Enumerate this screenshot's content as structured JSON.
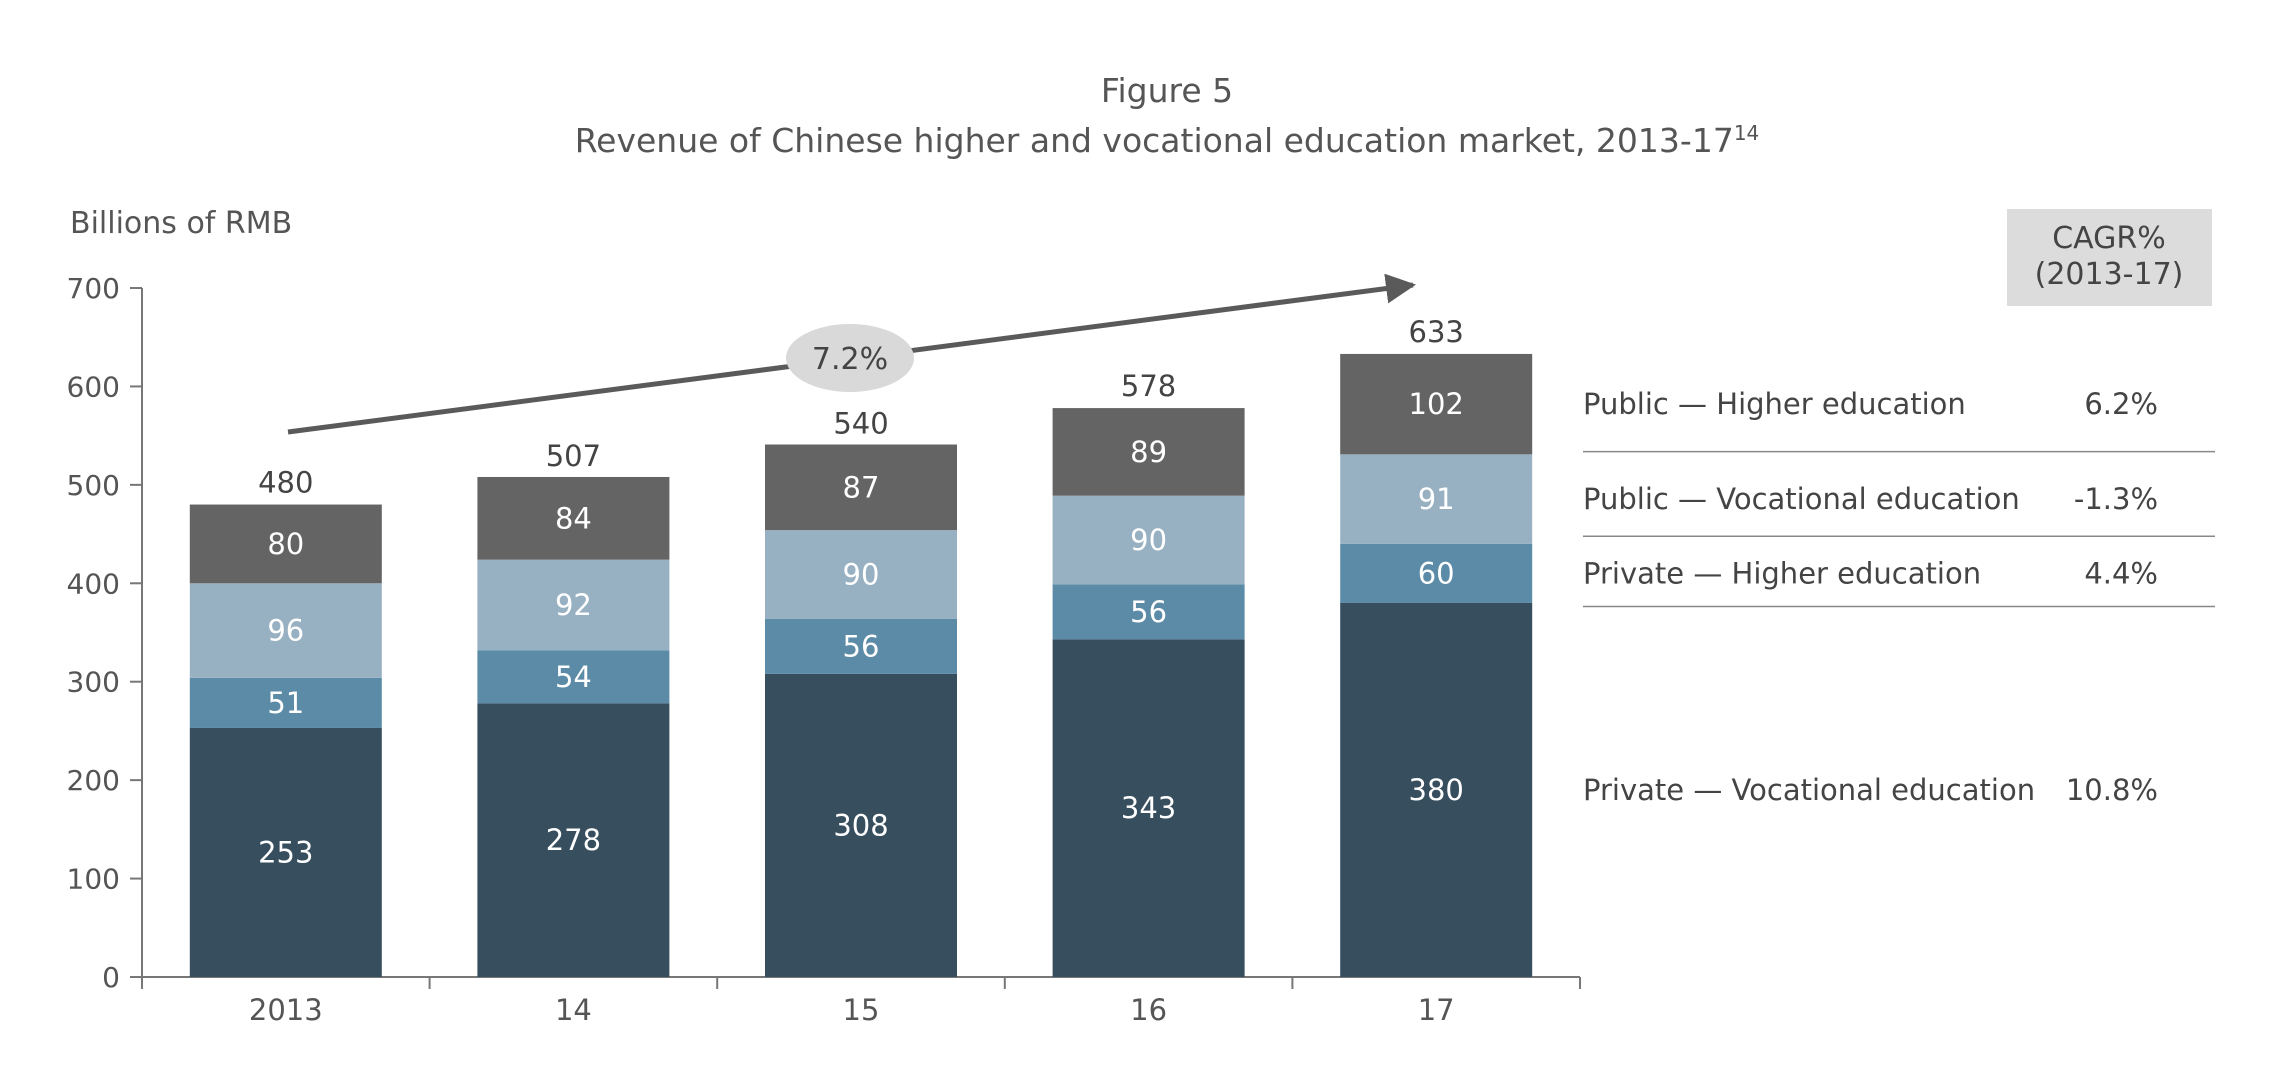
{
  "chart_data": {
    "type": "bar",
    "stacked": true,
    "figure_label": "Figure 5",
    "title": "Revenue of Chinese higher and vocational education market, 2013-17",
    "title_footnote": "14",
    "ylabel": "Billions of RMB",
    "xlabel": "",
    "ylim": [
      0,
      700
    ],
    "yticks": [
      0,
      100,
      200,
      300,
      400,
      500,
      600,
      700
    ],
    "categories": [
      "2013",
      "14",
      "15",
      "16",
      "17"
    ],
    "series": [
      {
        "name": "Private — Vocational education",
        "values": [
          253,
          278,
          308,
          343,
          380
        ],
        "color": "#364e5e",
        "cagr": "10.8%"
      },
      {
        "name": "Private — Higher education",
        "values": [
          51,
          54,
          56,
          56,
          60
        ],
        "color": "#5b8ba6",
        "cagr": "4.4%"
      },
      {
        "name": "Public — Vocational education",
        "values": [
          96,
          92,
          90,
          90,
          91
        ],
        "color": "#97b1c3",
        "cagr": "-1.3%"
      },
      {
        "name": "Public — Higher education",
        "values": [
          80,
          84,
          87,
          89,
          102
        ],
        "color": "#646464",
        "cagr": "6.2%"
      }
    ],
    "totals": [
      480,
      507,
      540,
      578,
      633
    ],
    "overall_cagr_label": "7.2%",
    "legend_header": "CAGR%\n(2013-17)",
    "legend_placement": "right",
    "grid": false
  }
}
